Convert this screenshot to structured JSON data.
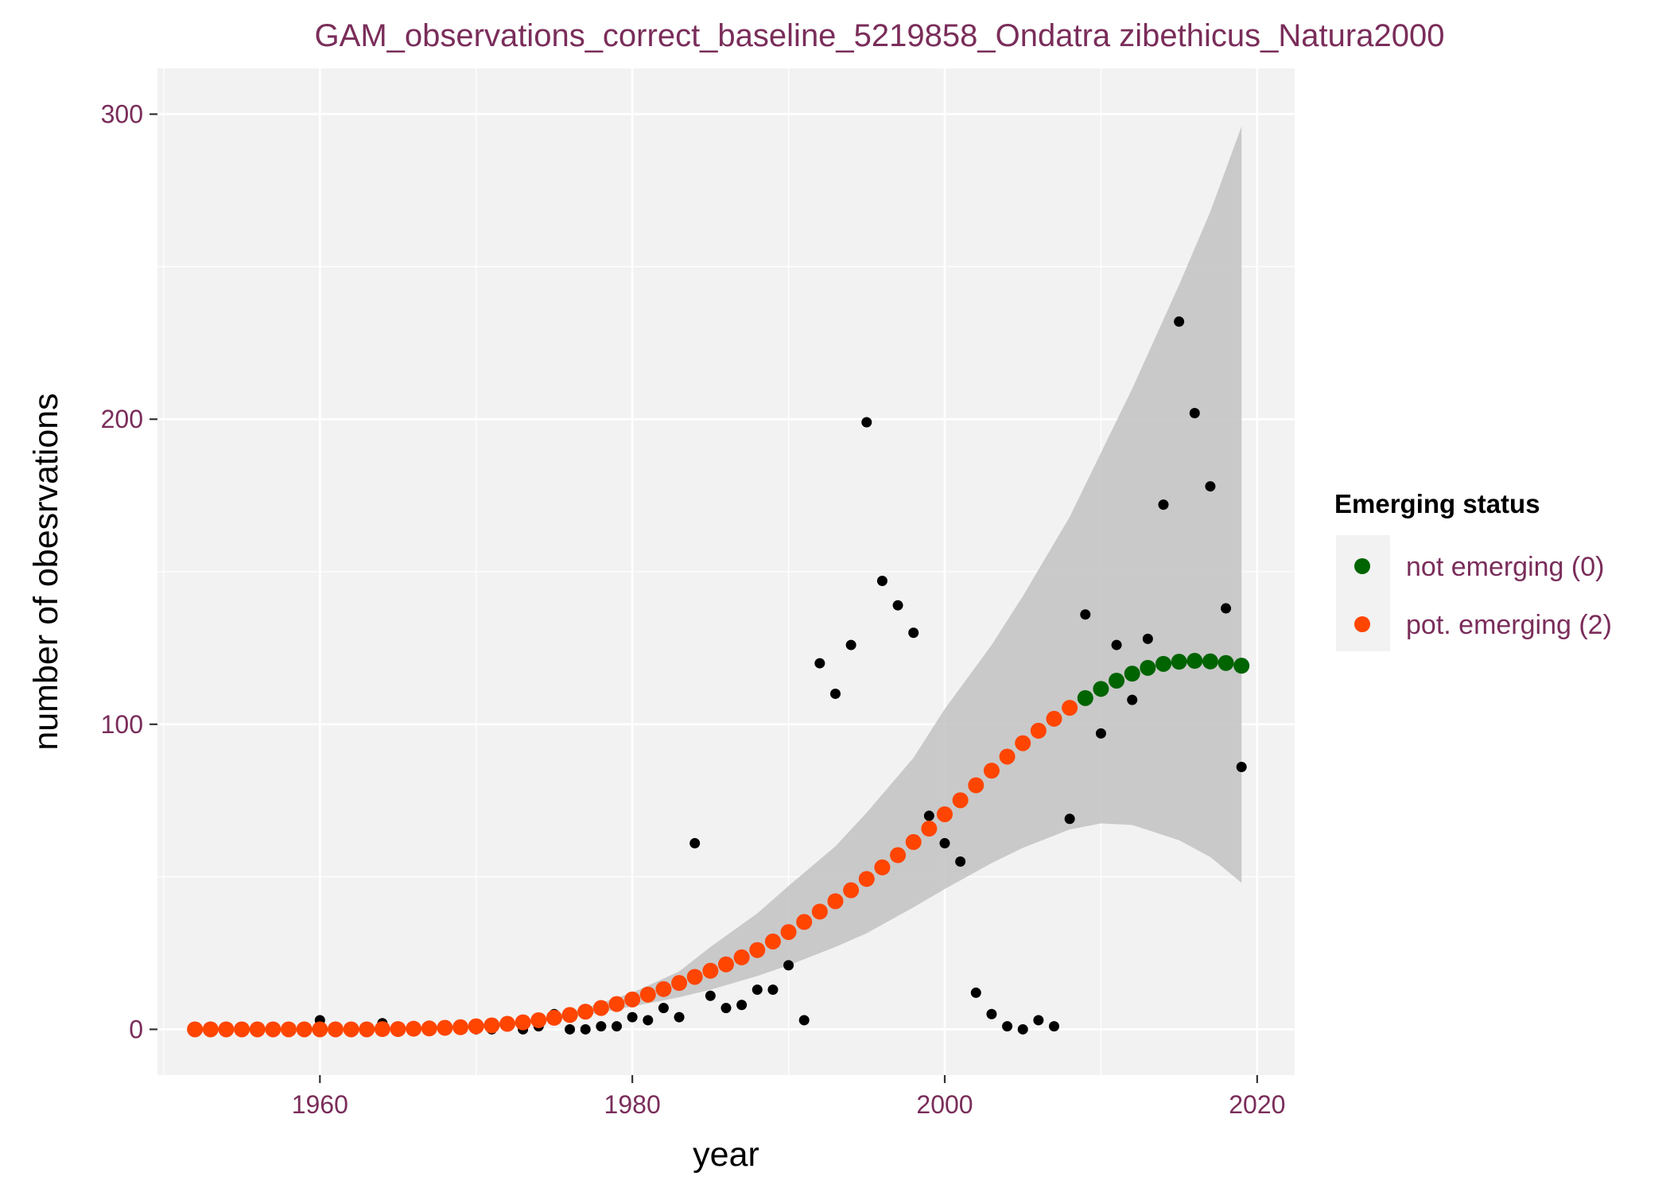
{
  "chart_data": {
    "type": "scatter",
    "title": "GAM_observations_correct_baseline_5219858_Ondatra zibethicus_Natura2000",
    "xlabel": "year",
    "ylabel": "number of obesrvations",
    "xlim": [
      1949.6,
      2022.4
    ],
    "ylim": [
      -15,
      315
    ],
    "x_ticks": [
      1960,
      1980,
      2000,
      2020
    ],
    "y_ticks": [
      0,
      100,
      200,
      300
    ],
    "grid": true,
    "legend": {
      "title": "Emerging status",
      "position": "right",
      "entries": [
        {
          "label": "not emerging (0)",
          "color": "#006400"
        },
        {
          "label": "pot. emerging (2)",
          "color": "#ff4500"
        }
      ]
    },
    "colors": {
      "observed": "#000000",
      "band": "#bebebe",
      "panel": "#f2f2f2",
      "grid": "#ffffff",
      "not_emerging": "#006400",
      "pot_emerging": "#ff4500"
    },
    "observed": {
      "x": [
        1960,
        1964,
        1968,
        1970,
        1971,
        1973,
        1974,
        1975,
        1976,
        1977,
        1978,
        1979,
        1980,
        1981,
        1982,
        1983,
        1984,
        1985,
        1986,
        1987,
        1988,
        1989,
        1990,
        1991,
        1992,
        1993,
        1994,
        1995,
        1996,
        1997,
        1998,
        1999,
        2000,
        2001,
        2002,
        2003,
        2004,
        2005,
        2006,
        2007,
        2008,
        2009,
        2010,
        2011,
        2012,
        2013,
        2014,
        2015,
        2016,
        2017,
        2018,
        2019
      ],
      "y": [
        3,
        2,
        0,
        0,
        0,
        0,
        1,
        5,
        0,
        0,
        1,
        1,
        4,
        3,
        7,
        4,
        61,
        11,
        7,
        8,
        13,
        13,
        21,
        3,
        120,
        110,
        126,
        199,
        147,
        139,
        130,
        70,
        61,
        55,
        12,
        5,
        1,
        0,
        3,
        1,
        69,
        136,
        97,
        126,
        108,
        128,
        172,
        232,
        202,
        178,
        138,
        86
      ]
    },
    "fit": {
      "x": [
        1952,
        1953,
        1954,
        1955,
        1956,
        1957,
        1958,
        1959,
        1960,
        1961,
        1962,
        1963,
        1964,
        1965,
        1966,
        1967,
        1968,
        1969,
        1970,
        1971,
        1972,
        1973,
        1974,
        1975,
        1976,
        1977,
        1978,
        1979,
        1980,
        1981,
        1982,
        1983,
        1984,
        1985,
        1986,
        1987,
        1988,
        1989,
        1990,
        1991,
        1992,
        1993,
        1994,
        1995,
        1996,
        1997,
        1998,
        1999,
        2000,
        2001,
        2002,
        2003,
        2004,
        2005,
        2006,
        2007,
        2008,
        2009,
        2010,
        2011,
        2012,
        2013,
        2014,
        2015,
        2016,
        2017,
        2018,
        2019
      ],
      "y": [
        0,
        0,
        0,
        0,
        0,
        0,
        0,
        0,
        0,
        0,
        0,
        0,
        0.1,
        0.1,
        0.2,
        0.3,
        0.5,
        0.7,
        1.0,
        1.3,
        1.8,
        2.3,
        3.0,
        3.8,
        4.7,
        5.8,
        7.0,
        8.3,
        9.8,
        11.4,
        13.2,
        15.2,
        17.2,
        19.2,
        21.3,
        23.6,
        26.0,
        28.8,
        31.9,
        35.2,
        38.6,
        42.0,
        45.6,
        49.3,
        53.1,
        57.1,
        61.4,
        65.8,
        70.5,
        75.1,
        80.0,
        84.8,
        89.4,
        93.8,
        97.9,
        101.8,
        105.4,
        108.6,
        111.6,
        114.3,
        116.6,
        118.5,
        119.8,
        120.5,
        120.8,
        120.6,
        120.1,
        119.2
      ],
      "status": [
        2,
        2,
        2,
        2,
        2,
        2,
        2,
        2,
        2,
        2,
        2,
        2,
        2,
        2,
        2,
        2,
        2,
        2,
        2,
        2,
        2,
        2,
        2,
        2,
        2,
        2,
        2,
        2,
        2,
        2,
        2,
        2,
        2,
        2,
        2,
        2,
        2,
        2,
        2,
        2,
        2,
        2,
        2,
        2,
        2,
        2,
        2,
        2,
        2,
        2,
        2,
        2,
        2,
        2,
        2,
        2,
        2,
        0,
        0,
        0,
        0,
        0,
        0,
        0,
        0,
        0,
        0,
        0
      ]
    },
    "band": {
      "x": [
        1952,
        1960,
        1965,
        1970,
        1973,
        1975,
        1977,
        1980,
        1983,
        1985,
        1988,
        1990,
        1993,
        1995,
        1998,
        2000,
        2003,
        2005,
        2008,
        2010,
        2012,
        2015,
        2017,
        2019
      ],
      "upper": [
        0,
        0.2,
        0.5,
        1.3,
        2.8,
        4.5,
        7,
        12,
        19,
        27,
        38,
        47,
        60,
        71,
        89,
        105,
        126,
        142,
        168,
        189,
        210,
        244,
        268,
        296
      ],
      "lower": [
        0,
        0,
        0.1,
        0.7,
        1.7,
        3.0,
        4.6,
        7.5,
        10.5,
        13,
        17.5,
        21,
        27,
        31.5,
        40,
        46,
        54.5,
        59.5,
        65.5,
        67.5,
        67,
        62,
        56.5,
        48
      ]
    }
  }
}
